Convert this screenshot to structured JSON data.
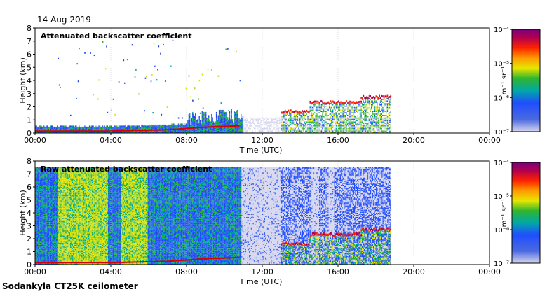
{
  "page": {
    "date": "14 Aug 2019",
    "instrument": "Sodankyla CT25K ceilometer"
  },
  "colors": {
    "bg": "#ffffff",
    "grid": "#c8c8c8",
    "noise": "#d6d6ee"
  },
  "chart_data": [
    {
      "type": "heatmap",
      "title": "Attenuated backscatter coefficient",
      "xlabel": "Time (UTC)",
      "ylabel": "Height (km)",
      "x_ticks": [
        "00:00",
        "04:00",
        "08:00",
        "12:00",
        "16:00",
        "20:00",
        "00:00"
      ],
      "x_range_hours": [
        0,
        24
      ],
      "y_ticks": [
        "0",
        "1",
        "2",
        "3",
        "4",
        "5",
        "6",
        "7",
        "8"
      ],
      "y_range_km": [
        0,
        8
      ],
      "data_end_hour": 18.8,
      "boundary_layer_km": [
        [
          0,
          0.15
        ],
        [
          4,
          0.15
        ],
        [
          7,
          0.25
        ],
        [
          9,
          0.45
        ],
        [
          10.8,
          0.55
        ]
      ],
      "cloud_layers": [
        {
          "start": 13.0,
          "end": 14.5,
          "base_km": 1.6
        },
        {
          "start": 14.5,
          "end": 16.3,
          "base_km": 2.3
        },
        {
          "start": 16.3,
          "end": 17.2,
          "base_km": 2.3
        },
        {
          "start": 17.2,
          "end": 18.8,
          "base_km": 2.7
        }
      ],
      "colorbar": {
        "label": "m⁻¹ sr⁻¹",
        "ticks": [
          "10⁻⁴",
          "10⁻⁵",
          "10⁻⁶",
          "10⁻⁷"
        ],
        "range": [
          "1e-7",
          "1e-4"
        ]
      }
    },
    {
      "type": "heatmap",
      "title": "Raw attenuated backscatter coefficient",
      "xlabel": "Time (UTC)",
      "ylabel": "Height (km)",
      "x_ticks": [
        "00:00",
        "04:00",
        "08:00",
        "12:00",
        "16:00",
        "20:00",
        "00:00"
      ],
      "x_range_hours": [
        0,
        24
      ],
      "y_ticks": [
        "0",
        "1",
        "2",
        "3",
        "4",
        "5",
        "6",
        "7",
        "8"
      ],
      "y_range_km": [
        0,
        8
      ],
      "data_end_hour": 18.8,
      "signal_top_km": 7.5,
      "bright_bands_hours": [
        [
          1.2,
          3.8
        ],
        [
          4.5,
          5.9
        ]
      ],
      "boundary_layer_km": [
        [
          0,
          0.15
        ],
        [
          4,
          0.15
        ],
        [
          7,
          0.25
        ],
        [
          9,
          0.45
        ],
        [
          10.8,
          0.55
        ]
      ],
      "cloud_layers": [
        {
          "start": 13.0,
          "end": 14.5,
          "base_km": 1.6
        },
        {
          "start": 14.5,
          "end": 16.3,
          "base_km": 2.3
        },
        {
          "start": 16.3,
          "end": 17.2,
          "base_km": 2.3
        },
        {
          "start": 17.2,
          "end": 18.8,
          "base_km": 2.7
        }
      ],
      "colorbar": {
        "label": "m⁻¹ sr⁻¹",
        "ticks": [
          "10⁻⁴",
          "10⁻⁵",
          "10⁻⁶",
          "10⁻⁷"
        ],
        "range": [
          "1e-7",
          "1e-4"
        ]
      }
    }
  ]
}
